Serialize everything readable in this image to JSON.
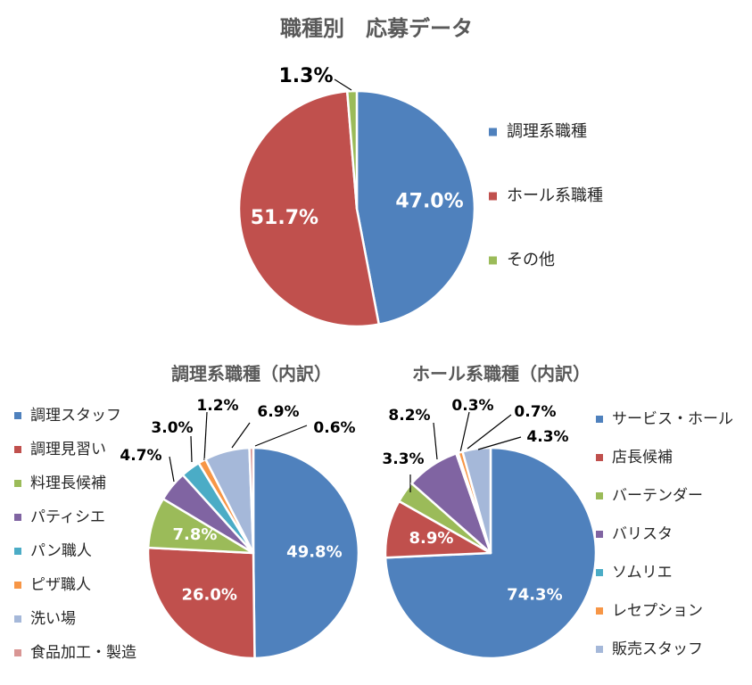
{
  "chart_data": [
    {
      "type": "pie",
      "title": "職種別　応募データ",
      "categories": [
        "調理系職種",
        "ホール系職種",
        "その他"
      ],
      "values": [
        47.0,
        51.7,
        1.3
      ],
      "labels": [
        "47.0%",
        "51.7%",
        "1.3%"
      ],
      "colors": [
        "#4F81BD",
        "#C0504D",
        "#9BBB59"
      ],
      "legend_position": "right"
    },
    {
      "type": "pie",
      "title": "調理系職種（内訳）",
      "categories": [
        "調理スタッフ",
        "調理見習い",
        "料理長候補",
        "パティシエ",
        "パン職人",
        "ピザ職人",
        "洗い場",
        "食品加工・製造"
      ],
      "values": [
        49.8,
        26.0,
        7.8,
        4.7,
        3.0,
        1.2,
        6.9,
        0.6
      ],
      "labels": [
        "49.8%",
        "26.0%",
        "7.8%",
        "4.7%",
        "3.0%",
        "1.2%",
        "6.9%",
        "0.6%"
      ],
      "colors": [
        "#4F81BD",
        "#C0504D",
        "#9BBB59",
        "#8064A2",
        "#4BACC6",
        "#F79646",
        "#A5B8D9",
        "#D99694"
      ],
      "legend_position": "left"
    },
    {
      "type": "pie",
      "title": "ホール系職種（内訳）",
      "categories": [
        "サービス・ホール",
        "店長候補",
        "バーテンダー",
        "バリスタ",
        "ソムリエ",
        "レセプション",
        "販売スタッフ"
      ],
      "values": [
        74.3,
        8.9,
        3.3,
        8.2,
        0.3,
        0.7,
        4.3
      ],
      "labels": [
        "74.3%",
        "8.9%",
        "3.3%",
        "8.2%",
        "0.3%",
        "0.7%",
        "4.3%"
      ],
      "colors": [
        "#4F81BD",
        "#C0504D",
        "#9BBB59",
        "#8064A2",
        "#4BACC6",
        "#F79646",
        "#A5B8D9"
      ],
      "legend_position": "right"
    }
  ]
}
